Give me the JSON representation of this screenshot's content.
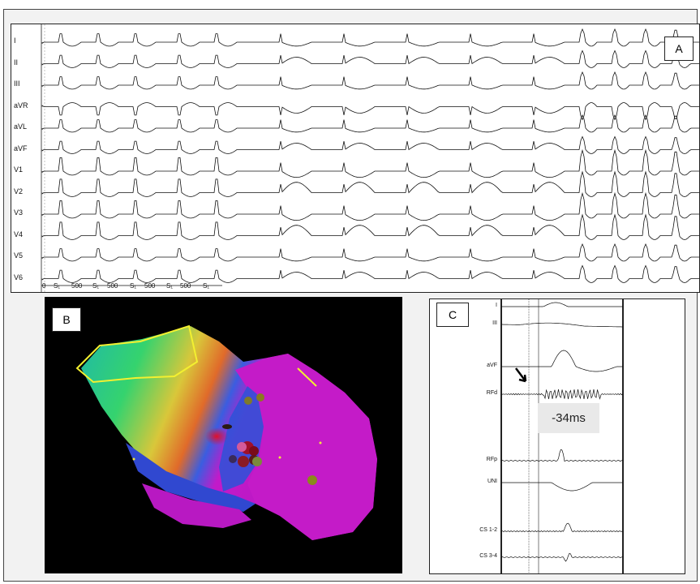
{
  "panel_a": {
    "tag": "A",
    "leads": [
      "I",
      "II",
      "III",
      "aVR",
      "aVL",
      "aVF",
      "V1",
      "V2",
      "V3",
      "V4",
      "V5",
      "V6"
    ],
    "scale_labels": [
      "0",
      "S₁",
      "500",
      "S₁",
      "500",
      "S₁",
      "500",
      "S₁",
      "500",
      "S₁"
    ]
  },
  "panel_b": {
    "tag": "B"
  },
  "panel_c": {
    "tag": "C",
    "channels": [
      "I",
      "III",
      "aVF",
      "RFd",
      "RFp",
      "UNI",
      "CS 1-2",
      "CS 3-4"
    ],
    "measurement": "-34ms"
  }
}
